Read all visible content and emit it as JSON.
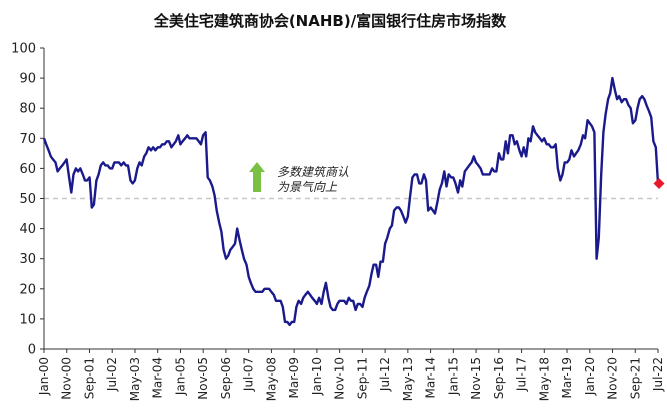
{
  "chart_data": {
    "type": "line",
    "title": "全美住宅建筑商协会(NAHB)/富国银行住房市场指数",
    "xlabel": "",
    "ylabel": "",
    "ylim": [
      0,
      100
    ],
    "yticks": [
      0,
      10,
      20,
      30,
      40,
      50,
      60,
      70,
      80,
      90,
      100
    ],
    "x_tick_labels": [
      "Jan-00",
      "Nov-00",
      "Sep-01",
      "Jul-02",
      "May-03",
      "Mar-04",
      "Jan-05",
      "Nov-05",
      "Sep-06",
      "Jul-07",
      "May-08",
      "Mar-09",
      "Jan-10",
      "Nov-10",
      "Sep-11",
      "Jul-12",
      "May-13",
      "Mar-14",
      "Jan-15",
      "Nov-15",
      "Sep-16",
      "Jul-17",
      "May-18",
      "Mar-19",
      "Jan-20",
      "Nov-20",
      "Sep-21",
      "Jul-22"
    ],
    "x_range": [
      "2000-01",
      "2022-07"
    ],
    "reference_line": {
      "y": 50,
      "style": "dashed",
      "color": "#c8c8c8"
    },
    "annotation": {
      "text_line1": "多数建筑商认",
      "text_line2": "为景气向上",
      "arrow": "up",
      "arrow_color": "#7ac143"
    },
    "line_color": "#1a1a8c",
    "marker": {
      "date": "2022-07",
      "value": 55,
      "color": "#e8192c",
      "shape": "diamond"
    },
    "series": [
      {
        "values": [
          [
            2000.0,
            70
          ],
          [
            2000.08,
            68
          ],
          [
            2000.17,
            66
          ],
          [
            2000.25,
            64
          ],
          [
            2000.33,
            63
          ],
          [
            2000.42,
            62
          ],
          [
            2000.5,
            59
          ],
          [
            2000.58,
            60
          ],
          [
            2000.67,
            61
          ],
          [
            2000.75,
            62
          ],
          [
            2000.83,
            63
          ],
          [
            2000.92,
            57
          ],
          [
            2001.0,
            52
          ],
          [
            2001.08,
            58
          ],
          [
            2001.17,
            60
          ],
          [
            2001.25,
            59
          ],
          [
            2001.33,
            60
          ],
          [
            2001.42,
            58
          ],
          [
            2001.5,
            56
          ],
          [
            2001.58,
            56
          ],
          [
            2001.67,
            57
          ],
          [
            2001.75,
            47
          ],
          [
            2001.83,
            48
          ],
          [
            2001.92,
            56
          ],
          [
            2002.0,
            58
          ],
          [
            2002.08,
            61
          ],
          [
            2002.17,
            62
          ],
          [
            2002.25,
            61
          ],
          [
            2002.33,
            61
          ],
          [
            2002.42,
            60
          ],
          [
            2002.5,
            60
          ],
          [
            2002.58,
            62
          ],
          [
            2002.67,
            62
          ],
          [
            2002.75,
            62
          ],
          [
            2002.83,
            61
          ],
          [
            2002.92,
            62
          ],
          [
            2003.0,
            61
          ],
          [
            2003.08,
            61
          ],
          [
            2003.17,
            56
          ],
          [
            2003.25,
            55
          ],
          [
            2003.33,
            56
          ],
          [
            2003.42,
            60
          ],
          [
            2003.5,
            62
          ],
          [
            2003.58,
            61
          ],
          [
            2003.67,
            64
          ],
          [
            2003.75,
            65
          ],
          [
            2003.83,
            67
          ],
          [
            2003.92,
            66
          ],
          [
            2004.0,
            67
          ],
          [
            2004.08,
            66
          ],
          [
            2004.17,
            67
          ],
          [
            2004.25,
            67
          ],
          [
            2004.33,
            68
          ],
          [
            2004.42,
            68
          ],
          [
            2004.5,
            69
          ],
          [
            2004.58,
            69
          ],
          [
            2004.67,
            67
          ],
          [
            2004.75,
            68
          ],
          [
            2004.83,
            69
          ],
          [
            2004.92,
            71
          ],
          [
            2005.0,
            68
          ],
          [
            2005.08,
            69
          ],
          [
            2005.17,
            70
          ],
          [
            2005.25,
            71
          ],
          [
            2005.33,
            70
          ],
          [
            2005.42,
            70
          ],
          [
            2005.5,
            70
          ],
          [
            2005.58,
            70
          ],
          [
            2005.67,
            69
          ],
          [
            2005.75,
            68
          ],
          [
            2005.83,
            71
          ],
          [
            2005.92,
            72
          ],
          [
            2006.0,
            57
          ],
          [
            2006.08,
            56
          ],
          [
            2006.17,
            54
          ],
          [
            2006.25,
            51
          ],
          [
            2006.33,
            46
          ],
          [
            2006.42,
            42
          ],
          [
            2006.5,
            39
          ],
          [
            2006.58,
            33
          ],
          [
            2006.67,
            30
          ],
          [
            2006.75,
            31
          ],
          [
            2006.83,
            33
          ],
          [
            2006.92,
            34
          ],
          [
            2007.0,
            35
          ],
          [
            2007.08,
            40
          ],
          [
            2007.17,
            36
          ],
          [
            2007.25,
            33
          ],
          [
            2007.33,
            30
          ],
          [
            2007.42,
            28
          ],
          [
            2007.5,
            24
          ],
          [
            2007.58,
            22
          ],
          [
            2007.67,
            20
          ],
          [
            2007.75,
            19
          ],
          [
            2007.83,
            19
          ],
          [
            2007.92,
            19
          ],
          [
            2008.0,
            19
          ],
          [
            2008.08,
            20
          ],
          [
            2008.17,
            20
          ],
          [
            2008.25,
            20
          ],
          [
            2008.33,
            19
          ],
          [
            2008.42,
            18
          ],
          [
            2008.5,
            16
          ],
          [
            2008.58,
            16
          ],
          [
            2008.67,
            16
          ],
          [
            2008.75,
            14
          ],
          [
            2008.83,
            9
          ],
          [
            2008.92,
            9
          ],
          [
            2009.0,
            8
          ],
          [
            2009.08,
            9
          ],
          [
            2009.17,
            9
          ],
          [
            2009.25,
            14
          ],
          [
            2009.33,
            16
          ],
          [
            2009.42,
            15
          ],
          [
            2009.5,
            17
          ],
          [
            2009.58,
            18
          ],
          [
            2009.67,
            19
          ],
          [
            2009.75,
            18
          ],
          [
            2009.83,
            17
          ],
          [
            2009.92,
            16
          ],
          [
            2010.0,
            15
          ],
          [
            2010.08,
            17
          ],
          [
            2010.17,
            15
          ],
          [
            2010.25,
            19
          ],
          [
            2010.33,
            22
          ],
          [
            2010.42,
            17
          ],
          [
            2010.5,
            14
          ],
          [
            2010.58,
            13
          ],
          [
            2010.67,
            13
          ],
          [
            2010.75,
            15
          ],
          [
            2010.83,
            16
          ],
          [
            2010.92,
            16
          ],
          [
            2011.0,
            16
          ],
          [
            2011.08,
            15
          ],
          [
            2011.17,
            17
          ],
          [
            2011.25,
            16
          ],
          [
            2011.33,
            16
          ],
          [
            2011.42,
            13
          ],
          [
            2011.5,
            15
          ],
          [
            2011.58,
            15
          ],
          [
            2011.67,
            14
          ],
          [
            2011.75,
            17
          ],
          [
            2011.83,
            19
          ],
          [
            2011.92,
            21
          ],
          [
            2012.0,
            25
          ],
          [
            2012.08,
            28
          ],
          [
            2012.17,
            28
          ],
          [
            2012.25,
            24
          ],
          [
            2012.33,
            29
          ],
          [
            2012.42,
            29
          ],
          [
            2012.5,
            35
          ],
          [
            2012.58,
            37
          ],
          [
            2012.67,
            40
          ],
          [
            2012.75,
            41
          ],
          [
            2012.83,
            46
          ],
          [
            2012.92,
            47
          ],
          [
            2013.0,
            47
          ],
          [
            2013.08,
            46
          ],
          [
            2013.17,
            44
          ],
          [
            2013.25,
            42
          ],
          [
            2013.33,
            44
          ],
          [
            2013.42,
            51
          ],
          [
            2013.5,
            57
          ],
          [
            2013.58,
            58
          ],
          [
            2013.67,
            58
          ],
          [
            2013.75,
            55
          ],
          [
            2013.83,
            55
          ],
          [
            2013.92,
            58
          ],
          [
            2014.0,
            56
          ],
          [
            2014.08,
            46
          ],
          [
            2014.17,
            47
          ],
          [
            2014.25,
            46
          ],
          [
            2014.33,
            45
          ],
          [
            2014.42,
            49
          ],
          [
            2014.5,
            53
          ],
          [
            2014.58,
            55
          ],
          [
            2014.67,
            59
          ],
          [
            2014.75,
            54
          ],
          [
            2014.83,
            58
          ],
          [
            2014.92,
            57
          ],
          [
            2015.0,
            57
          ],
          [
            2015.08,
            55
          ],
          [
            2015.17,
            52
          ],
          [
            2015.25,
            56
          ],
          [
            2015.33,
            54
          ],
          [
            2015.42,
            59
          ],
          [
            2015.5,
            60
          ],
          [
            2015.58,
            61
          ],
          [
            2015.67,
            62
          ],
          [
            2015.75,
            64
          ],
          [
            2015.83,
            62
          ],
          [
            2015.92,
            61
          ],
          [
            2016.0,
            60
          ],
          [
            2016.08,
            58
          ],
          [
            2016.17,
            58
          ],
          [
            2016.25,
            58
          ],
          [
            2016.33,
            58
          ],
          [
            2016.42,
            60
          ],
          [
            2016.5,
            59
          ],
          [
            2016.58,
            59
          ],
          [
            2016.67,
            65
          ],
          [
            2016.75,
            63
          ],
          [
            2016.83,
            63
          ],
          [
            2016.92,
            69
          ],
          [
            2017.0,
            65
          ],
          [
            2017.08,
            71
          ],
          [
            2017.17,
            71
          ],
          [
            2017.25,
            68
          ],
          [
            2017.33,
            69
          ],
          [
            2017.42,
            66
          ],
          [
            2017.5,
            64
          ],
          [
            2017.58,
            67
          ],
          [
            2017.67,
            64
          ],
          [
            2017.75,
            70
          ],
          [
            2017.83,
            69
          ],
          [
            2017.92,
            74
          ],
          [
            2018.0,
            72
          ],
          [
            2018.08,
            71
          ],
          [
            2018.17,
            70
          ],
          [
            2018.25,
            69
          ],
          [
            2018.33,
            70
          ],
          [
            2018.42,
            68
          ],
          [
            2018.5,
            68
          ],
          [
            2018.58,
            67
          ],
          [
            2018.67,
            67
          ],
          [
            2018.75,
            68
          ],
          [
            2018.83,
            60
          ],
          [
            2018.92,
            56
          ],
          [
            2019.0,
            58
          ],
          [
            2019.08,
            62
          ],
          [
            2019.17,
            62
          ],
          [
            2019.25,
            63
          ],
          [
            2019.33,
            66
          ],
          [
            2019.42,
            64
          ],
          [
            2019.5,
            65
          ],
          [
            2019.58,
            66
          ],
          [
            2019.67,
            68
          ],
          [
            2019.75,
            71
          ],
          [
            2019.83,
            70
          ],
          [
            2019.92,
            76
          ],
          [
            2020.0,
            75
          ],
          [
            2020.08,
            74
          ],
          [
            2020.17,
            72
          ],
          [
            2020.25,
            30
          ],
          [
            2020.33,
            37
          ],
          [
            2020.42,
            58
          ],
          [
            2020.5,
            72
          ],
          [
            2020.58,
            78
          ],
          [
            2020.67,
            83
          ],
          [
            2020.75,
            85
          ],
          [
            2020.83,
            90
          ],
          [
            2020.92,
            86
          ],
          [
            2021.0,
            83
          ],
          [
            2021.08,
            84
          ],
          [
            2021.17,
            82
          ],
          [
            2021.25,
            83
          ],
          [
            2021.33,
            83
          ],
          [
            2021.42,
            81
          ],
          [
            2021.5,
            80
          ],
          [
            2021.58,
            75
          ],
          [
            2021.67,
            76
          ],
          [
            2021.75,
            80
          ],
          [
            2021.83,
            83
          ],
          [
            2021.92,
            84
          ],
          [
            2022.0,
            83
          ],
          [
            2022.08,
            81
          ],
          [
            2022.17,
            79
          ],
          [
            2022.25,
            77
          ],
          [
            2022.33,
            69
          ],
          [
            2022.42,
            67
          ],
          [
            2022.5,
            55
          ]
        ]
      }
    ]
  }
}
